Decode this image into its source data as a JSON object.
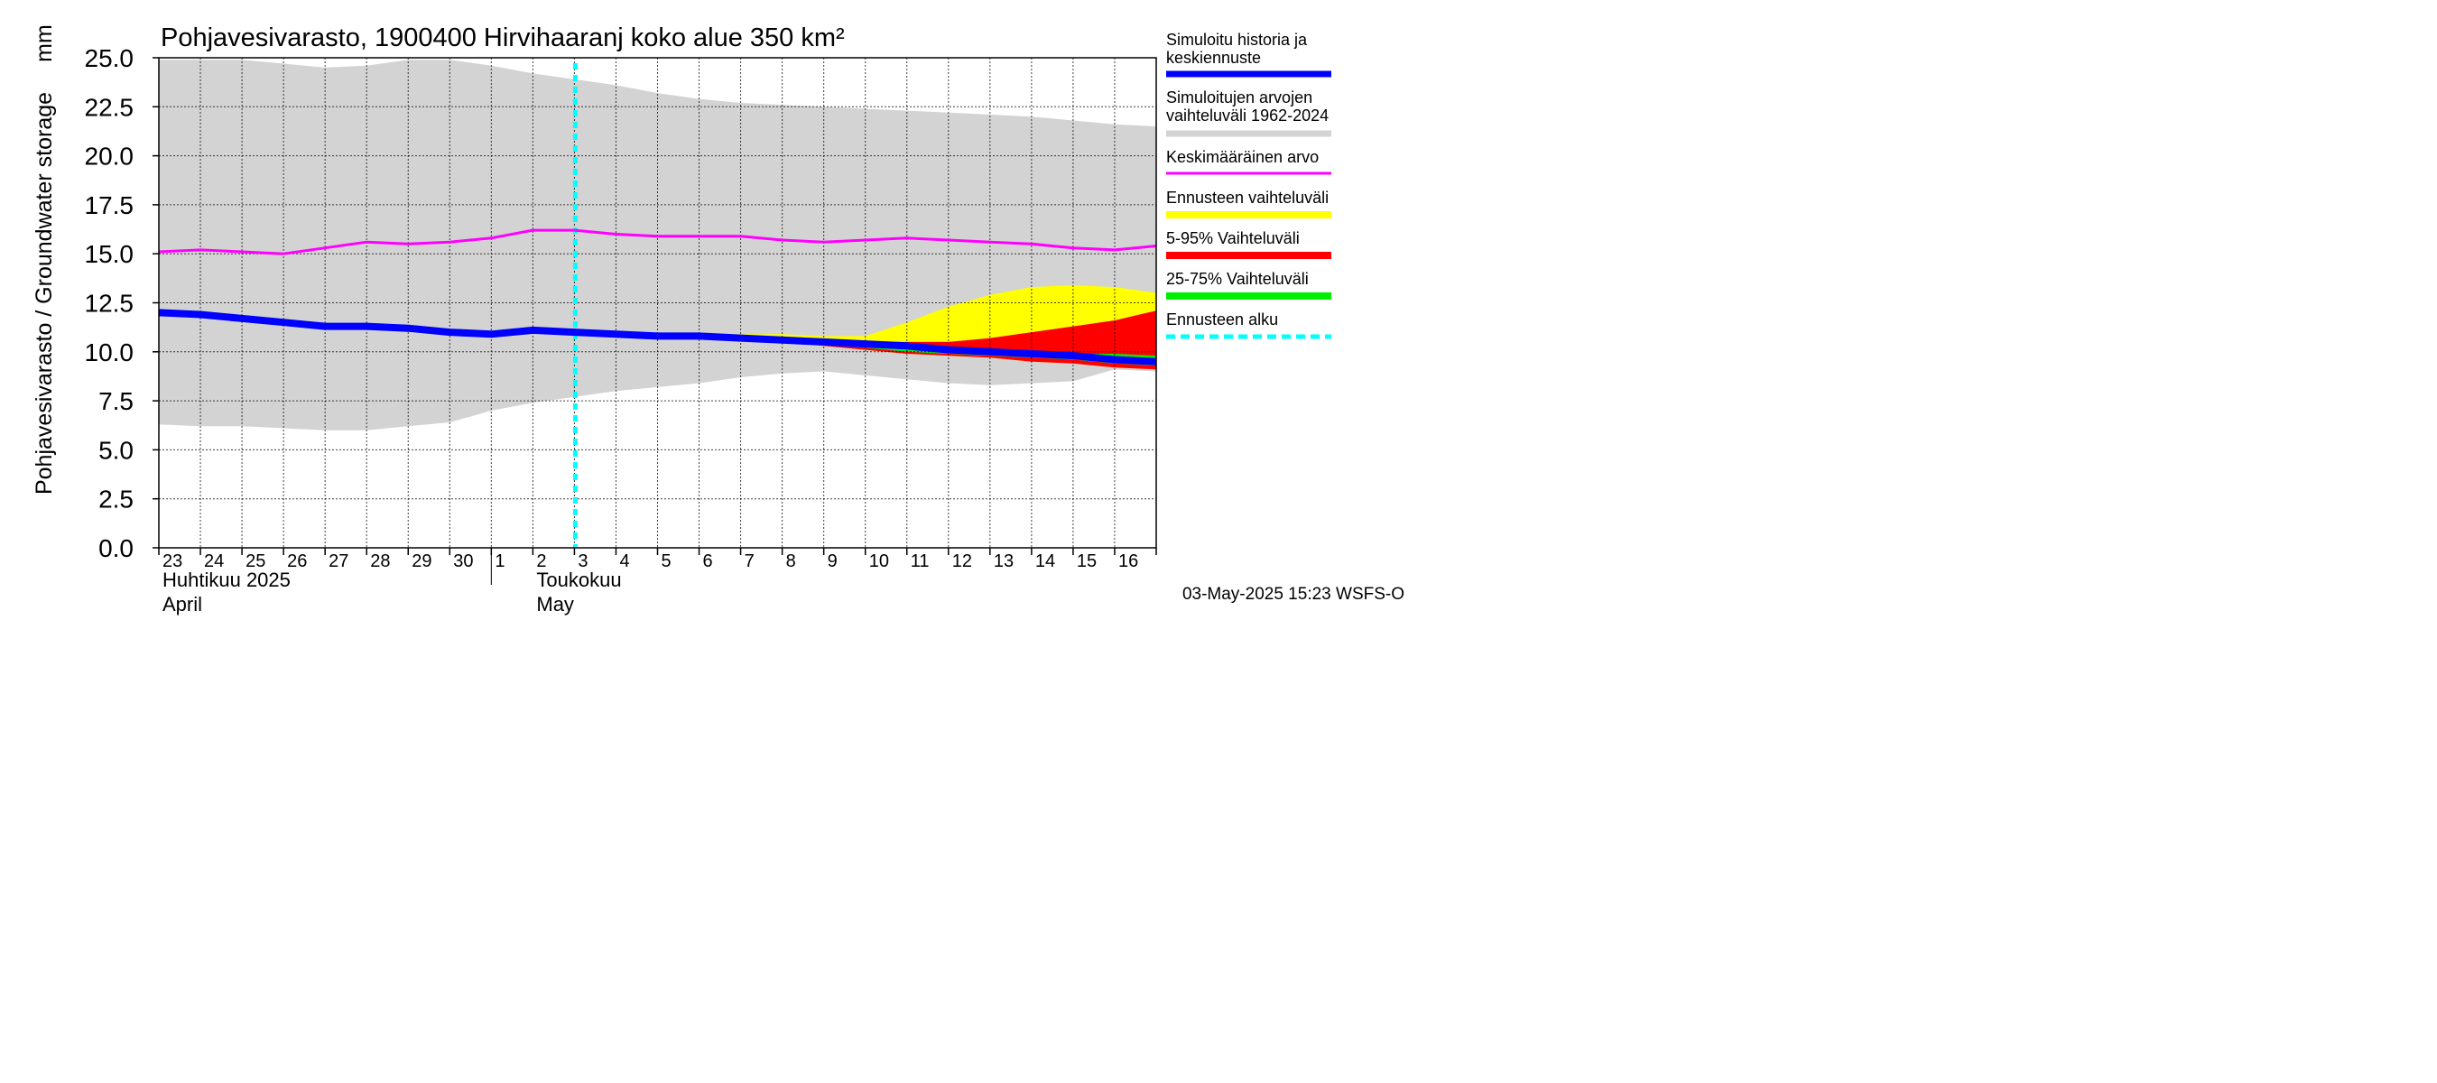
{
  "chart_data": {
    "type": "area",
    "title": "Pohjavesivarasto, 1900400 Hirvihaaranj koko alue 350 km²",
    "ylabel": "Pohjavesivarasto / Groundwater storage",
    "yunit": "mm",
    "ylim": [
      0,
      25
    ],
    "yticks": [
      "0.0",
      "2.5",
      "5.0",
      "7.5",
      "10.0",
      "12.5",
      "15.0",
      "17.5",
      "20.0",
      "22.5",
      "25.0"
    ],
    "x_day_labels": [
      "23",
      "24",
      "25",
      "26",
      "27",
      "28",
      "29",
      "30",
      "1",
      "2",
      "3",
      "4",
      "5",
      "6",
      "7",
      "8",
      "9",
      "10",
      "11",
      "12",
      "13",
      "14",
      "15",
      "16"
    ],
    "x_month_labels": [
      {
        "line1": "Huhtikuu  2025",
        "line2": "April"
      },
      {
        "line1": "Toukokuu",
        "line2": "May"
      }
    ],
    "x_dates": [
      "2025-04-23",
      "2025-04-24",
      "2025-04-25",
      "2025-04-26",
      "2025-04-27",
      "2025-04-28",
      "2025-04-29",
      "2025-04-30",
      "2025-05-01",
      "2025-05-02",
      "2025-05-03",
      "2025-05-04",
      "2025-05-05",
      "2025-05-06",
      "2025-05-07",
      "2025-05-08",
      "2025-05-09",
      "2025-05-10",
      "2025-05-11",
      "2025-05-12",
      "2025-05-13",
      "2025-05-14",
      "2025-05-15",
      "2025-05-16",
      "2025-05-17"
    ],
    "forecast_start": "2025-05-03",
    "historical_range": {
      "upper": [
        24.9,
        24.9,
        24.9,
        24.7,
        24.5,
        24.6,
        24.9,
        24.9,
        24.6,
        24.2,
        23.9,
        23.6,
        23.2,
        22.9,
        22.7,
        22.6,
        22.5,
        22.4,
        22.3,
        22.2,
        22.1,
        22.0,
        21.8,
        21.6,
        21.5
      ],
      "lower": [
        6.3,
        6.2,
        6.2,
        6.1,
        6.0,
        6.0,
        6.2,
        6.4,
        7.0,
        7.4,
        7.7,
        8.0,
        8.2,
        8.4,
        8.7,
        8.9,
        9.0,
        8.8,
        8.6,
        8.4,
        8.3,
        8.4,
        8.5,
        9.1,
        9.0
      ]
    },
    "forecast_range": {
      "yellow": {
        "upper": [
          null,
          null,
          null,
          null,
          null,
          null,
          null,
          null,
          null,
          null,
          11.0,
          11.0,
          10.9,
          10.9,
          10.9,
          10.9,
          10.8,
          10.8,
          11.5,
          12.3,
          12.9,
          13.3,
          13.4,
          13.3,
          13.0
        ],
        "lower": [
          null,
          null,
          null,
          null,
          null,
          null,
          null,
          null,
          null,
          null,
          11.0,
          11.0,
          10.9,
          10.8,
          10.7,
          10.5,
          10.3,
          10.1,
          9.9,
          9.8,
          9.7,
          9.5,
          9.4,
          9.2,
          9.1
        ]
      },
      "red": {
        "upper": [
          null,
          null,
          null,
          null,
          null,
          null,
          null,
          null,
          null,
          null,
          11.0,
          11.0,
          10.9,
          10.9,
          10.8,
          10.7,
          10.6,
          10.5,
          10.5,
          10.5,
          10.7,
          11.0,
          11.3,
          11.6,
          12.1
        ],
        "lower": [
          null,
          null,
          null,
          null,
          null,
          null,
          null,
          null,
          null,
          null,
          11.0,
          11.0,
          10.9,
          10.8,
          10.7,
          10.5,
          10.3,
          10.1,
          9.9,
          9.8,
          9.7,
          9.5,
          9.4,
          9.2,
          9.1
        ]
      },
      "green": {
        "upper": [
          null,
          null,
          null,
          null,
          null,
          null,
          null,
          null,
          null,
          null,
          11.0,
          11.0,
          10.9,
          10.8,
          10.7,
          10.6,
          10.5,
          10.4,
          10.3,
          10.2,
          10.1,
          10.0,
          9.9,
          9.9,
          9.8
        ],
        "lower": [
          null,
          null,
          null,
          null,
          null,
          null,
          null,
          null,
          null,
          null,
          11.0,
          11.0,
          10.9,
          10.8,
          10.7,
          10.5,
          10.4,
          10.2,
          10.0,
          9.9,
          9.8,
          9.7,
          9.6,
          9.4,
          9.3
        ]
      }
    },
    "series": [
      {
        "name": "Keskimääräinen arvo",
        "color": "#ff00ff",
        "values": [
          15.1,
          15.2,
          15.1,
          15.0,
          15.3,
          15.6,
          15.5,
          15.6,
          15.8,
          16.2,
          16.2,
          16.0,
          15.9,
          15.9,
          15.9,
          15.7,
          15.6,
          15.7,
          15.8,
          15.7,
          15.6,
          15.5,
          15.3,
          15.2,
          15.4
        ]
      },
      {
        "name": "Simuloitu historia ja keskiennuste",
        "color": "#0000ff",
        "values": [
          12.0,
          11.9,
          11.7,
          11.5,
          11.3,
          11.3,
          11.2,
          11.0,
          10.9,
          11.1,
          11.0,
          10.9,
          10.8,
          10.8,
          10.7,
          10.6,
          10.5,
          10.4,
          10.3,
          10.1,
          10.0,
          9.9,
          9.8,
          9.6,
          9.5
        ]
      }
    ],
    "legend": [
      {
        "label": "Simuloitu historia ja keskiennuste",
        "color": "#0000ff"
      },
      {
        "label": "Simuloitujen arvojen vaihteluväli 1962-2024",
        "color": "#d3d3d3"
      },
      {
        "label": "Keskimääräinen arvo",
        "color": "#ff00ff"
      },
      {
        "label": "Ennusteen vaihteluväli",
        "color": "#ffff00"
      },
      {
        "label": "5-95% Vaihteluväli",
        "color": "#ff0000"
      },
      {
        "label": "25-75% Vaihteluväli",
        "color": "#00ee00"
      },
      {
        "label": "Ennusteen alku",
        "color": "#00ffff"
      }
    ],
    "legend_position": "right",
    "grid": true,
    "footer": "03-May-2025 15:23 WSFS-O"
  }
}
